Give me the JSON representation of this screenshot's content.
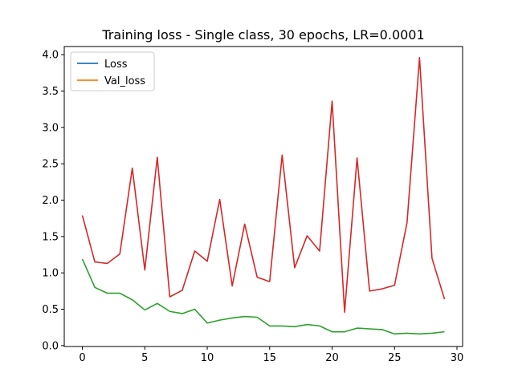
{
  "chart_data": {
    "type": "line",
    "title": "Training loss - Single class, 30 epochs, LR=0.0001",
    "xlabel": "",
    "ylabel": "",
    "xlim": [
      -1.45,
      30.45
    ],
    "ylim": [
      -0.0125,
      4.1125
    ],
    "xticks": [
      0,
      5,
      10,
      15,
      20,
      25,
      30
    ],
    "yticks": [
      0.0,
      0.5,
      1.0,
      1.5,
      2.0,
      2.5,
      3.0,
      3.5,
      4.0
    ],
    "ytick_labels": [
      "0.0",
      "0.5",
      "1.0",
      "1.5",
      "2.0",
      "2.5",
      "3.0",
      "3.5",
      "4.0"
    ],
    "grid": false,
    "legend": {
      "placement": "top-left",
      "entries": [
        {
          "label": "Loss",
          "color": "#1f77b4"
        },
        {
          "label": "Val_loss",
          "color": "#ff7f0e"
        }
      ]
    },
    "x": [
      0,
      1,
      2,
      3,
      4,
      5,
      6,
      7,
      8,
      9,
      10,
      11,
      12,
      13,
      14,
      15,
      16,
      17,
      18,
      19,
      20,
      21,
      22,
      23,
      24,
      25,
      26,
      27,
      28,
      29
    ],
    "series": [
      {
        "color": "#2ca02c",
        "values": [
          1.19,
          0.8,
          0.72,
          0.72,
          0.63,
          0.49,
          0.58,
          0.47,
          0.44,
          0.5,
          0.31,
          0.35,
          0.38,
          0.4,
          0.39,
          0.27,
          0.27,
          0.26,
          0.29,
          0.27,
          0.19,
          0.19,
          0.24,
          0.23,
          0.22,
          0.16,
          0.17,
          0.16,
          0.17,
          0.19
        ]
      },
      {
        "color": "#d62728",
        "values": [
          1.79,
          1.15,
          1.13,
          1.26,
          2.44,
          1.04,
          2.59,
          0.67,
          0.76,
          1.3,
          1.16,
          2.01,
          0.82,
          1.67,
          0.94,
          0.88,
          2.62,
          1.07,
          1.51,
          1.3,
          3.36,
          0.46,
          2.58,
          0.75,
          0.78,
          0.83,
          1.69,
          3.96,
          1.2,
          0.64
        ]
      }
    ]
  }
}
